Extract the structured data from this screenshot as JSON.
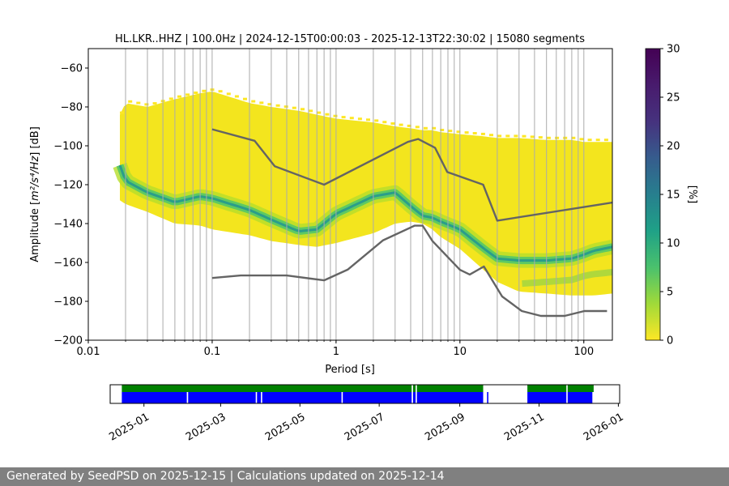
{
  "chart_data": [
    {
      "type": "heatmap",
      "title": "HL.LKR..HHZ | 100.0Hz | 2024-12-15T00:00:03 - 2025-12-13T22:30:02 | 15080 segments",
      "xlabel": "Period [s]",
      "ylabel_prefix": "Amplitude [",
      "ylabel_math": "m²/s⁴/Hz",
      "ylabel_suffix": "] [dB]",
      "x_scale": "log",
      "xlim": [
        0.01,
        170
      ],
      "ylim": [
        -200,
        -50
      ],
      "x_ticks": [
        {
          "value": 0.01,
          "label": "0.01"
        },
        {
          "value": 0.1,
          "label": "0.1"
        },
        {
          "value": 1,
          "label": "1"
        },
        {
          "value": 10,
          "label": "10"
        },
        {
          "value": 100,
          "label": "100"
        }
      ],
      "y_ticks": [
        {
          "value": -60,
          "label": "−60"
        },
        {
          "value": -80,
          "label": "−80"
        },
        {
          "value": -100,
          "label": "−100"
        },
        {
          "value": -120,
          "label": "−120"
        },
        {
          "value": -140,
          "label": "−140"
        },
        {
          "value": -160,
          "label": "−160"
        },
        {
          "value": -180,
          "label": "−180"
        },
        {
          "value": -200,
          "label": "−200"
        }
      ],
      "grid_periods": [
        0.02,
        0.03,
        0.04,
        0.05,
        0.06,
        0.07,
        0.08,
        0.09,
        0.1,
        0.2,
        0.3,
        0.4,
        0.5,
        0.6,
        0.7,
        0.8,
        0.9,
        1,
        2,
        3,
        4,
        5,
        6,
        7,
        8,
        9,
        10,
        20,
        30,
        40,
        50,
        60,
        70,
        80,
        90,
        100
      ],
      "colorbar": {
        "label": "[%]",
        "range": [
          0,
          30
        ],
        "ticks": [
          {
            "value": 0,
            "label": "0"
          },
          {
            "value": 5,
            "label": "5"
          },
          {
            "value": 10,
            "label": "10"
          },
          {
            "value": 15,
            "label": "15"
          },
          {
            "value": 20,
            "label": "20"
          },
          {
            "value": 25,
            "label": "25"
          },
          {
            "value": 30,
            "label": "30"
          }
        ]
      },
      "psd_envelope": {
        "period": [
          0.018,
          0.02,
          0.03,
          0.05,
          0.08,
          0.1,
          0.2,
          0.3,
          0.5,
          0.7,
          1.0,
          2,
          3,
          4,
          5,
          6,
          7,
          10,
          15,
          20,
          30,
          50,
          80,
          100,
          120,
          170
        ],
        "top_edge": [
          -84,
          -78,
          -80,
          -76,
          -73,
          -72,
          -78,
          -80,
          -82,
          -84,
          -86,
          -88,
          -90,
          -91,
          -92,
          -92,
          -93,
          -94,
          -95,
          -96,
          -96,
          -97,
          -97,
          -98,
          -98,
          -98
        ],
        "bottom_edge": [
          -128,
          -130,
          -134,
          -140,
          -141,
          -143,
          -146,
          -149,
          -151,
          -152,
          -150,
          -145,
          -140,
          -139,
          -140,
          -143,
          -147,
          -153,
          -163,
          -170,
          -175,
          -176,
          -177,
          -177,
          -177,
          -176
        ],
        "mode": [
          -110,
          -118,
          -124,
          -129,
          -126,
          -127,
          -133,
          -138,
          -144,
          -143,
          -135,
          -126,
          -124,
          -131,
          -136,
          -137,
          -139,
          -143,
          -152,
          -158,
          -159,
          -159,
          -158,
          -156,
          -154,
          -152
        ],
        "low_mode": [
          null,
          null,
          null,
          null,
          null,
          null,
          null,
          null,
          null,
          null,
          null,
          null,
          null,
          null,
          null,
          null,
          null,
          null,
          null,
          null,
          -171,
          -170,
          -169,
          -167,
          -166,
          -165
        ]
      },
      "noise_model_high": {
        "period": [
          0.1,
          0.22,
          0.32,
          0.8,
          3.8,
          4.6,
          6.3,
          7.9,
          15.4,
          20,
          354.8
        ],
        "db": [
          -91.5,
          -97.4,
          -110.5,
          -120,
          -98,
          -96.5,
          -101,
          -113.5,
          -120,
          -138.5,
          -126
        ]
      },
      "noise_model_low": {
        "period": [
          0.1,
          0.17,
          0.4,
          0.8,
          1.24,
          2.4,
          4.3,
          5.0,
          6.0,
          10.0,
          12.0,
          15.6,
          21.9,
          31.6,
          45.0,
          70.0,
          101.0,
          154.0
        ],
        "db": [
          -168,
          -166.7,
          -166.7,
          -169.2,
          -163.7,
          -148.6,
          -141.1,
          -141.1,
          -149.0,
          -163.8,
          -166.2,
          -162.1,
          -177.5,
          -185.0,
          -187.5,
          -187.5,
          -185.0,
          -185.0
        ]
      }
    },
    {
      "type": "timeline",
      "xlim": [
        "2024-12-06",
        "2026-01-02"
      ],
      "x_ticks": [
        {
          "value": "2025-01-01",
          "label": "2025-01"
        },
        {
          "value": "2025-03-01",
          "label": "2025-03"
        },
        {
          "value": "2025-05-01",
          "label": "2025-05"
        },
        {
          "value": "2025-07-01",
          "label": "2025-07"
        },
        {
          "value": "2025-09-01",
          "label": "2025-09"
        },
        {
          "value": "2025-11-01",
          "label": "2025-11"
        },
        {
          "value": "2026-01-01",
          "label": "2026-01"
        }
      ],
      "colors": {
        "upper": "#008000",
        "lower": "#0000ff"
      },
      "upper_spans": [
        [
          "2024-12-15",
          "2025-07-26"
        ],
        [
          "2025-07-27",
          "2025-07-29"
        ],
        [
          "2025-07-30",
          "2025-09-19"
        ],
        [
          "2025-10-23",
          "2025-11-22"
        ],
        [
          "2025-11-23",
          "2025-12-13"
        ]
      ],
      "lower_spans": [
        [
          "2024-12-15",
          "2025-02-03"
        ],
        [
          "2025-02-04",
          "2025-03-28"
        ],
        [
          "2025-03-29",
          "2025-04-01"
        ],
        [
          "2025-04-02",
          "2025-06-02"
        ],
        [
          "2025-06-03",
          "2025-07-26"
        ],
        [
          "2025-07-27",
          "2025-07-29"
        ],
        [
          "2025-07-30",
          "2025-09-19"
        ],
        [
          "2025-09-22",
          "2025-09-23"
        ],
        [
          "2025-10-23",
          "2025-11-22"
        ],
        [
          "2025-11-23",
          "2025-12-12"
        ]
      ]
    }
  ],
  "footer": {
    "text": "Generated by SeedPSD on 2025-12-15 | Calculations updated on 2025-12-14"
  }
}
